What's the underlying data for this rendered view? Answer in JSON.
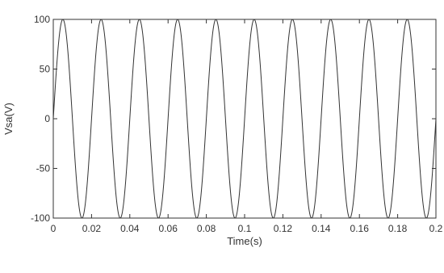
{
  "chart_data": {
    "type": "line",
    "title": "",
    "xlabel": "Time(s)",
    "ylabel": "Vsa(V)",
    "xlim": [
      0,
      0.2
    ],
    "ylim": [
      -100,
      100
    ],
    "x_ticks": [
      0,
      0.02,
      0.04,
      0.06,
      0.08,
      0.1,
      0.12,
      0.14,
      0.16,
      0.18,
      0.2
    ],
    "x_tick_labels": [
      "0",
      "0.02",
      "0.04",
      "0.06",
      "0.08",
      "0.1",
      "0.12",
      "0.14",
      "0.16",
      "0.18",
      "0.2"
    ],
    "y_ticks": [
      100,
      50,
      0,
      -50,
      -100
    ],
    "y_tick_labels": [
      "100",
      "50",
      "0",
      "-50",
      "-100"
    ],
    "grid": false,
    "series": [
      {
        "amplitude": 100,
        "frequency_hz": 50,
        "phase_deg": 0,
        "x_start": 0,
        "x_end": 0.2
      }
    ],
    "line_color": "#333333"
  }
}
